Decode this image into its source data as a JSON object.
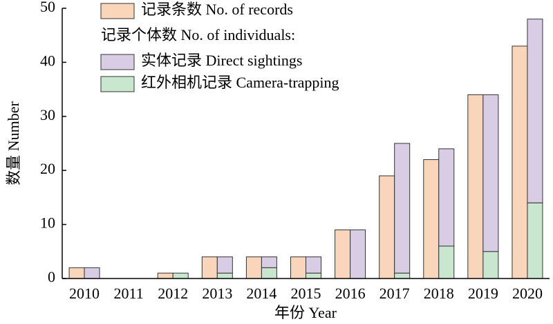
{
  "chart_data": {
    "type": "bar",
    "x_label": "年份 Year",
    "y_label": "数量 Number",
    "legend_subtitle": "记录个体数 No. of individuals:",
    "categories": [
      "2010",
      "2011",
      "2012",
      "2013",
      "2014",
      "2015",
      "2016",
      "2017",
      "2018",
      "2019",
      "2020"
    ],
    "series": [
      {
        "name": "记录条数 No. of records",
        "color": "#f9d5b9",
        "stack": "records",
        "values": [
          2,
          0,
          1,
          4,
          4,
          4,
          9,
          19,
          22,
          34,
          43
        ]
      },
      {
        "name": "红外相机记录 Camera-trapping",
        "color": "#c9e7cf",
        "stack": "individuals",
        "values": [
          0,
          0,
          1,
          1,
          2,
          1,
          0,
          1,
          6,
          5,
          14
        ]
      },
      {
        "name": "实体记录 Direct sightings",
        "color": "#d9cde6",
        "stack": "individuals",
        "values": [
          2,
          0,
          0,
          3,
          2,
          3,
          9,
          24,
          18,
          29,
          34
        ]
      }
    ],
    "ylim": [
      0,
      50
    ],
    "yticks": [
      0,
      10,
      20,
      30,
      40,
      50
    ]
  }
}
